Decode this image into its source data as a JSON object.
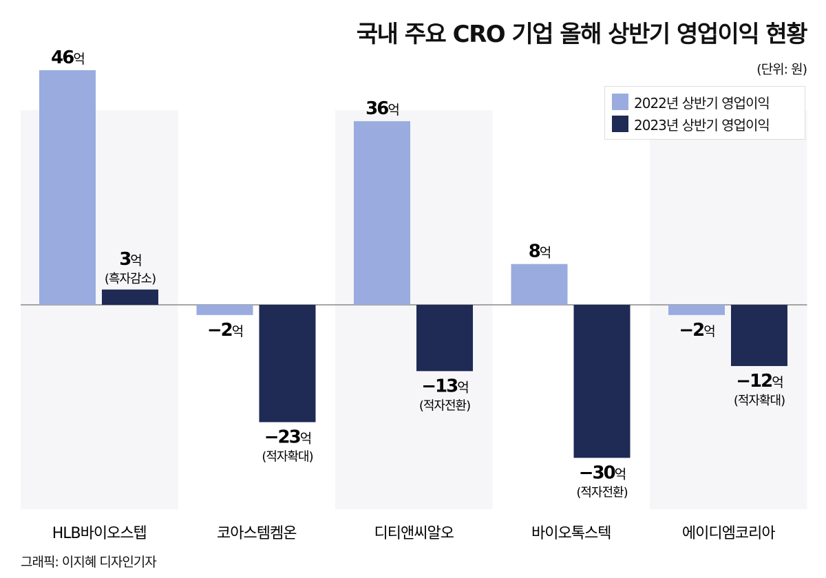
{
  "chart_data": {
    "type": "bar",
    "title": "국내 주요 CRO 기업 올해 상반기 영업이익 현황",
    "unit": "(단위: 원)",
    "categories": [
      "HLB바이오스텝",
      "코아스템켐온",
      "디티앤씨알오",
      "바이오톡스텍",
      "에이디엠코리아"
    ],
    "series": [
      {
        "name": "2022년 상반기 영업이익",
        "color": "#9aabdf",
        "values": [
          46,
          -2,
          36,
          8,
          -2
        ],
        "labels": [
          "46억",
          "−2억",
          "36억",
          "8억",
          "−2억"
        ],
        "notes": [
          "",
          "",
          "",
          "",
          ""
        ]
      },
      {
        "name": "2023년 상반기 영업이익",
        "color": "#1f2a55",
        "values": [
          3,
          -23,
          -13,
          -30,
          -12
        ],
        "labels": [
          "3억",
          "−23억",
          "−13억",
          "−30억",
          "−12억"
        ],
        "notes": [
          "(흑자감소)",
          "(적자확대)",
          "(적자전환)",
          "(적자전환)",
          "(적자확대)"
        ]
      }
    ],
    "ylim": [
      -40,
      46
    ],
    "grid": false,
    "legend": "top-right"
  },
  "footer": "그래픽: 이지혜 디자인기자"
}
